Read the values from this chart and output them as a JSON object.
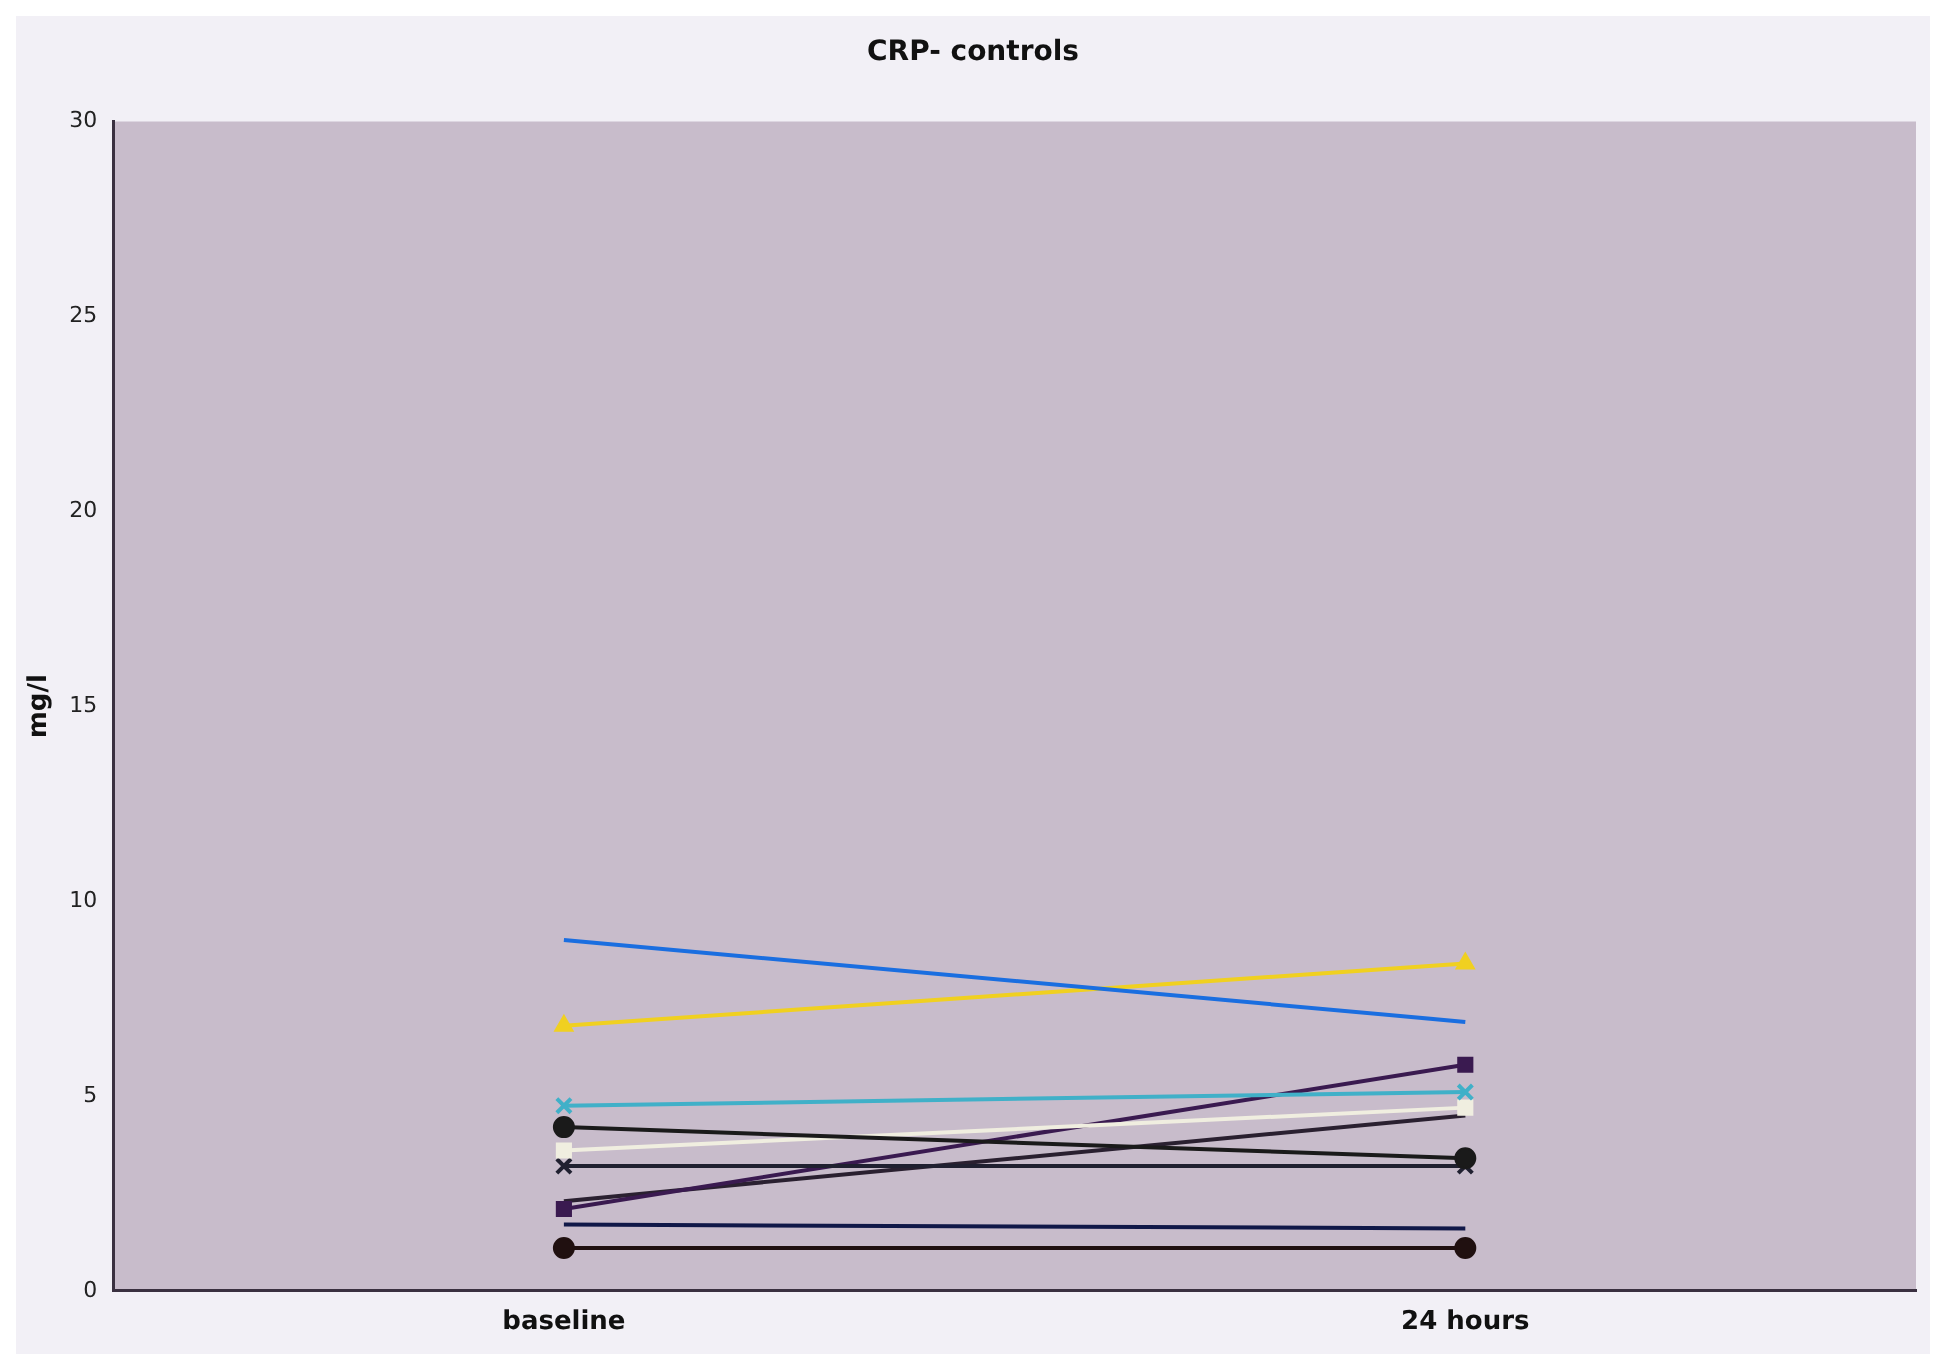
{
  "chart_data": {
    "type": "line",
    "title": "CRP- controls",
    "ylabel": "mg/l",
    "categories": [
      "baseline",
      "24 hours"
    ],
    "ylim": [
      0,
      30
    ],
    "yticks": [
      0,
      5,
      10,
      15,
      20,
      25,
      30
    ],
    "grid": false,
    "legend": false,
    "series": [
      {
        "color": "#1a6ee0",
        "values": [
          9.0,
          6.9
        ],
        "marker": "none"
      },
      {
        "color": "#f0d020",
        "values": [
          6.8,
          8.4
        ],
        "marker": "triangle"
      },
      {
        "color": "#40b0c8",
        "values": [
          4.75,
          5.1
        ],
        "marker": "cross"
      },
      {
        "color": "#1a1a1a",
        "values": [
          4.2,
          3.4
        ],
        "marker": "circle"
      },
      {
        "color": "#f0eee0",
        "values": [
          3.6,
          4.7
        ],
        "marker": "square"
      },
      {
        "color": "#202030",
        "values": [
          3.2,
          3.2
        ],
        "marker": "cross"
      },
      {
        "color": "#3a1a50",
        "values": [
          2.1,
          5.8
        ],
        "marker": "square"
      },
      {
        "color": "#2a2030",
        "values": [
          2.3,
          4.5
        ],
        "marker": "none"
      },
      {
        "color": "#101848",
        "values": [
          1.7,
          1.6
        ],
        "marker": "none"
      },
      {
        "color": "#201010",
        "values": [
          1.1,
          1.1
        ],
        "marker": "circle"
      }
    ]
  }
}
